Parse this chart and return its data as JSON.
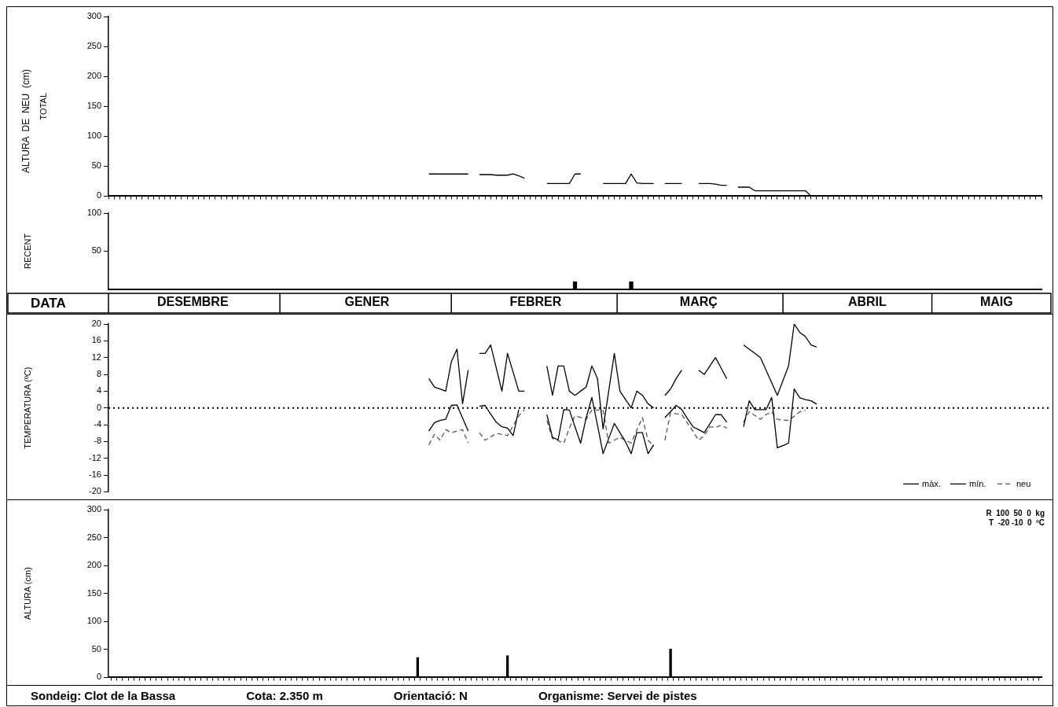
{
  "chart_data": [
    {
      "type": "line",
      "ylabel": "TOTAL",
      "annotations": [
        "ALTURA  DE  NEU  (cm)"
      ],
      "ylim": [
        0,
        300
      ],
      "yticks": [
        0,
        50,
        100,
        150,
        200,
        250,
        300
      ],
      "tick_labels": "y",
      "grid": false,
      "categories": [
        null,
        null,
        null,
        null,
        null,
        null,
        null,
        null,
        null,
        null,
        null,
        null,
        null,
        null,
        null,
        null,
        null,
        null,
        null,
        null,
        null,
        null,
        null,
        null,
        null,
        null,
        null,
        null,
        null,
        null,
        null,
        null,
        null,
        null,
        null,
        null,
        null,
        null,
        null,
        null,
        null,
        null,
        null,
        null,
        null,
        null,
        null,
        null,
        null,
        null,
        null,
        null,
        null,
        null,
        null,
        null,
        null,
        null,
        null,
        null,
        null,
        null,
        null,
        null,
        null,
        null,
        null,
        null,
        null,
        null,
        null,
        null,
        null,
        null,
        null,
        null,
        null,
        null,
        null,
        null,
        null,
        null,
        null,
        null,
        null,
        null,
        null,
        null,
        null,
        null,
        null,
        null,
        null,
        null,
        null,
        null,
        null,
        null,
        null,
        null,
        null,
        null,
        null,
        null,
        null,
        null,
        null,
        null,
        null,
        null,
        null,
        null,
        null,
        null,
        null,
        null,
        null,
        null,
        null,
        null,
        null,
        null,
        null,
        null,
        null,
        null,
        null,
        null,
        null,
        null,
        null,
        null,
        null,
        null,
        null,
        null,
        null,
        null,
        null,
        null,
        null,
        null,
        null,
        null,
        null,
        null,
        null,
        null,
        null,
        null,
        null,
        null,
        null,
        null,
        null,
        null,
        null,
        null,
        null,
        null,
        null,
        null,
        null,
        null,
        null,
        null,
        null
      ],
      "series": [
        {
          "color": "#000000",
          "values": [
            null,
            null,
            null,
            null,
            null,
            null,
            null,
            null,
            null,
            null,
            null,
            null,
            null,
            null,
            null,
            null,
            null,
            null,
            null,
            null,
            null,
            null,
            null,
            null,
            null,
            null,
            null,
            null,
            null,
            null,
            null,
            null,
            null,
            null,
            null,
            null,
            null,
            null,
            null,
            null,
            null,
            null,
            null,
            null,
            null,
            null,
            null,
            null,
            null,
            null,
            null,
            null,
            null,
            null,
            null,
            null,
            null,
            37,
            37,
            37,
            37,
            37,
            37,
            37,
            37,
            null,
            36,
            36,
            36,
            35,
            35,
            35,
            37,
            34,
            30,
            null,
            null,
            null,
            21,
            21,
            21,
            21,
            21,
            37,
            37,
            null,
            null,
            null,
            21,
            21,
            21,
            21,
            21,
            37,
            22,
            21,
            21,
            21,
            null,
            21,
            21,
            21,
            21,
            null,
            null,
            21,
            21,
            21,
            20,
            18,
            18,
            null,
            15,
            15,
            15,
            9,
            9,
            9,
            9,
            9,
            9,
            9,
            9,
            9,
            9,
            0,
            null,
            null,
            null,
            null,
            null,
            null,
            null,
            null,
            null,
            null,
            null,
            null,
            null,
            null,
            null,
            null,
            null,
            null,
            null,
            null,
            null,
            null,
            null,
            null,
            null,
            null,
            null,
            null,
            null,
            null,
            null,
            null,
            null,
            null,
            null,
            null,
            null,
            null,
            null,
            null,
            null
          ]
        }
      ]
    },
    {
      "type": "bar",
      "ylabel": "RECENT",
      "xlabel": "DATA",
      "ylim": [
        0,
        100
      ],
      "yticks": [
        50,
        100
      ],
      "grid": false,
      "categories": [
        null,
        null,
        null,
        null,
        null,
        null,
        null,
        null,
        null,
        null,
        null,
        null,
        null,
        null,
        null,
        "DESEMBRE",
        null,
        null,
        null,
        null,
        null,
        null,
        null,
        null,
        null,
        null,
        null,
        null,
        null,
        null,
        null,
        null,
        null,
        null,
        null,
        null,
        null,
        null,
        null,
        null,
        null,
        null,
        null,
        null,
        null,
        null,
        "GENER",
        null,
        null,
        null,
        null,
        null,
        null,
        null,
        null,
        null,
        null,
        null,
        null,
        null,
        null,
        null,
        null,
        null,
        null,
        null,
        null,
        null,
        null,
        null,
        null,
        null,
        null,
        null,
        null,
        null,
        "FEBRER",
        null,
        null,
        null,
        null,
        null,
        null,
        null,
        null,
        null,
        null,
        null,
        null,
        null,
        null,
        null,
        null,
        null,
        null,
        null,
        null,
        null,
        null,
        null,
        null,
        null,
        null,
        null,
        null,
        "MARÇ",
        null,
        null,
        null,
        null,
        null,
        null,
        null,
        null,
        null,
        null,
        null,
        null,
        null,
        null,
        null,
        null,
        null,
        null,
        null,
        null,
        null,
        null,
        null,
        null,
        null,
        null,
        null,
        null,
        null,
        "ABRIL",
        null,
        null,
        null,
        null,
        null,
        null,
        null,
        null,
        null,
        null,
        null,
        null,
        null,
        null,
        null,
        null,
        null,
        null,
        null,
        null,
        null,
        null,
        "MAIG",
        null,
        null,
        null,
        null,
        null,
        null,
        null,
        null
      ],
      "series": [
        {
          "color": "#000000",
          "values": [
            null,
            null,
            null,
            null,
            null,
            null,
            null,
            null,
            null,
            null,
            null,
            null,
            null,
            null,
            null,
            null,
            null,
            null,
            null,
            null,
            null,
            null,
            null,
            null,
            null,
            null,
            null,
            null,
            null,
            null,
            null,
            null,
            null,
            null,
            null,
            null,
            null,
            null,
            null,
            null,
            null,
            null,
            null,
            null,
            null,
            null,
            null,
            null,
            null,
            null,
            null,
            null,
            null,
            null,
            null,
            null,
            null,
            null,
            null,
            null,
            null,
            null,
            null,
            null,
            null,
            null,
            null,
            null,
            null,
            null,
            null,
            null,
            null,
            null,
            null,
            null,
            null,
            null,
            null,
            null,
            null,
            null,
            null,
            10,
            null,
            null,
            null,
            null,
            null,
            null,
            null,
            null,
            null,
            10,
            null,
            null,
            null,
            null,
            null,
            null,
            null,
            null,
            null,
            null,
            null,
            null,
            null,
            null,
            null,
            null,
            null,
            null,
            null,
            null,
            null,
            null,
            null,
            null,
            null,
            null,
            null,
            null,
            null,
            null,
            null,
            null,
            null,
            null,
            null,
            null,
            null,
            null,
            null,
            null,
            null,
            null,
            null,
            null,
            null,
            null,
            null,
            null,
            null,
            null,
            null,
            null,
            null,
            null,
            null,
            null,
            null,
            null,
            null,
            null,
            null,
            null,
            null,
            null,
            null,
            null,
            null,
            null,
            null,
            null,
            null,
            null,
            null
          ]
        }
      ]
    },
    {
      "type": "line",
      "ylabel": "TEMPERATURA (ºC)",
      "ylim": [
        -20,
        20
      ],
      "yticks": [
        -20,
        -16,
        -12,
        -8,
        -4,
        0,
        4,
        8,
        12,
        16,
        20
      ],
      "tick_labels": "y",
      "grid": false,
      "legend": "bottom right",
      "ref_lines": [
        {
          "axis": "y",
          "value": 0,
          "line_style": "dotted",
          "color": "#000000"
        }
      ],
      "categories": [
        null,
        null,
        null,
        null,
        null,
        null,
        null,
        null,
        null,
        null,
        null,
        null,
        null,
        null,
        null,
        null,
        null,
        null,
        null,
        null,
        null,
        null,
        null,
        null,
        null,
        null,
        null,
        null,
        null,
        null,
        null,
        null,
        null,
        null,
        null,
        null,
        null,
        null,
        null,
        null,
        null,
        null,
        null,
        null,
        null,
        null,
        null,
        null,
        null,
        null,
        null,
        null,
        null,
        null,
        null,
        null,
        null,
        null,
        null,
        null,
        null,
        null,
        null,
        null,
        null,
        null,
        null,
        null,
        null,
        null,
        null,
        null,
        null,
        null,
        null,
        null,
        null,
        null,
        null,
        null,
        null,
        null,
        null,
        null,
        null,
        null,
        null,
        null,
        null,
        null,
        null,
        null,
        null,
        null,
        null,
        null,
        null,
        null,
        null,
        null,
        null,
        null,
        null,
        null,
        null,
        null,
        null,
        null,
        null,
        null,
        null,
        null,
        null,
        null,
        null,
        null,
        null,
        null,
        null,
        null,
        null,
        null,
        null,
        null,
        null,
        null,
        null,
        null,
        null,
        null,
        null,
        null,
        null,
        null,
        null,
        null,
        null,
        null,
        null,
        null,
        null,
        null,
        null,
        null,
        null,
        null,
        null,
        null,
        null,
        null,
        null,
        null,
        null,
        null,
        null,
        null,
        null,
        null,
        null,
        null,
        null,
        null,
        null,
        null,
        null,
        null,
        null
      ],
      "series": [
        {
          "name": "màx.",
          "color": "#000000",
          "line_style": "solid",
          "values": [
            null,
            null,
            null,
            null,
            null,
            null,
            null,
            null,
            null,
            null,
            null,
            null,
            null,
            null,
            null,
            null,
            null,
            null,
            null,
            null,
            null,
            null,
            null,
            null,
            null,
            null,
            null,
            null,
            null,
            null,
            null,
            null,
            null,
            null,
            null,
            null,
            null,
            null,
            null,
            null,
            null,
            null,
            null,
            null,
            null,
            null,
            null,
            null,
            null,
            null,
            null,
            null,
            null,
            null,
            null,
            null,
            null,
            7,
            5,
            4.5,
            4,
            11,
            14,
            1,
            9,
            null,
            13,
            13,
            15,
            9.5,
            4,
            13,
            8.5,
            4,
            4,
            null,
            null,
            null,
            10,
            3,
            10,
            10,
            4,
            3,
            4,
            5,
            10,
            7,
            -5,
            4,
            13,
            4,
            2,
            0,
            4,
            3,
            1,
            0,
            null,
            3,
            4.5,
            7,
            9,
            null,
            null,
            9,
            8,
            10,
            12,
            9.5,
            7,
            null,
            null,
            15,
            14,
            13,
            12,
            9,
            6,
            3,
            6.5,
            10,
            20,
            18,
            17,
            15,
            14.5,
            null,
            null,
            null,
            null,
            null,
            null,
            null,
            null,
            null,
            null,
            null,
            null,
            null,
            null,
            null,
            null,
            null,
            null,
            null,
            null,
            null,
            null,
            null,
            null,
            null,
            null,
            null,
            null,
            null,
            null,
            null,
            null,
            null,
            null,
            null,
            null,
            null,
            null,
            null,
            null
          ]
        },
        {
          "name": "mín.",
          "color": "#000000",
          "line_style": "solid",
          "values": [
            null,
            null,
            null,
            null,
            null,
            null,
            null,
            null,
            null,
            null,
            null,
            null,
            null,
            null,
            null,
            null,
            null,
            null,
            null,
            null,
            null,
            null,
            null,
            null,
            null,
            null,
            null,
            null,
            null,
            null,
            null,
            null,
            null,
            null,
            null,
            null,
            null,
            null,
            null,
            null,
            null,
            null,
            null,
            null,
            null,
            null,
            null,
            null,
            null,
            null,
            null,
            null,
            null,
            null,
            null,
            null,
            null,
            -5.5,
            -3.5,
            -3,
            -2.7,
            0.6,
            0.7,
            -2.4,
            -5.5,
            null,
            0.4,
            0.6,
            -1.5,
            -3.4,
            -4.5,
            -4.8,
            -6.6,
            -0.4,
            null,
            null,
            null,
            null,
            -1.6,
            -7,
            -7.6,
            -0.4,
            -0.5,
            -4.5,
            -8.4,
            -2.3,
            2.5,
            -4.1,
            -10.9,
            -7.3,
            -3.7,
            -5.9,
            -8.1,
            -10.9,
            -5.9,
            -5.9,
            -10.9,
            -8.8,
            null,
            -2.3,
            -0.9,
            0.6,
            -0.4,
            -2.5,
            -4.5,
            -5.2,
            -5.9,
            -3.8,
            -1.6,
            -1.6,
            -3.4,
            null,
            null,
            -4.5,
            1.7,
            -0.4,
            -0.4,
            -0.4,
            2.5,
            -9.5,
            -9,
            -8.4,
            4.5,
            2.4,
            2,
            1.7,
            0.9,
            null,
            null,
            null,
            null,
            null,
            null,
            null,
            null,
            null,
            null,
            null,
            null,
            null,
            null,
            null,
            null,
            null,
            null,
            null,
            null,
            null,
            null,
            null,
            null,
            null,
            null,
            null,
            null,
            null,
            null,
            null,
            null,
            null,
            null,
            null,
            null,
            null,
            null,
            null,
            null
          ]
        },
        {
          "name": "neu",
          "color": "#555555",
          "line_style": "dashed",
          "values": [
            null,
            null,
            null,
            null,
            null,
            null,
            null,
            null,
            null,
            null,
            null,
            null,
            null,
            null,
            null,
            null,
            null,
            null,
            null,
            null,
            null,
            null,
            null,
            null,
            null,
            null,
            null,
            null,
            null,
            null,
            null,
            null,
            null,
            null,
            null,
            null,
            null,
            null,
            null,
            null,
            null,
            null,
            null,
            null,
            null,
            null,
            null,
            null,
            null,
            null,
            null,
            null,
            null,
            null,
            null,
            null,
            null,
            -8.8,
            -6.3,
            -7.7,
            -5.2,
            -5.9,
            -5.5,
            -5.2,
            -8.3,
            null,
            -5.9,
            -7.7,
            -6.9,
            -6.1,
            -6.3,
            -6.6,
            -4.2,
            -1.9,
            -0.4,
            null,
            null,
            null,
            -3,
            -7.3,
            -7.8,
            -8.4,
            -4.8,
            -1.9,
            -2.3,
            -2.7,
            -0.5,
            -0.5,
            -0.5,
            -8.4,
            -7.7,
            -7,
            -7.7,
            -8.4,
            -5.3,
            -2.3,
            -7.7,
            -9.1,
            null,
            -7.7,
            -1.2,
            -1.4,
            -1.6,
            -3.6,
            -5.6,
            -7.7,
            -6.6,
            -4.5,
            -4.7,
            -4.1,
            -4.8,
            null,
            null,
            -3.4,
            -0.9,
            -1.8,
            -2.7,
            -1.6,
            -0.9,
            -2.7,
            -2.9,
            -3,
            -2,
            -0.9,
            -0.6,
            null,
            null,
            null,
            null,
            null,
            null,
            null,
            null,
            null,
            null,
            null,
            null,
            null,
            null,
            null,
            null,
            null,
            null,
            null,
            null,
            null,
            null,
            null,
            null,
            null,
            null,
            null,
            null,
            null,
            null,
            null,
            null,
            null,
            null,
            null,
            null,
            null,
            null,
            null,
            null,
            null,
            null
          ]
        }
      ]
    },
    {
      "type": "bar",
      "ylabel": "ALTURA (cm)",
      "ylim": [
        0,
        300
      ],
      "yticks": [
        0,
        50,
        100,
        150,
        200,
        250,
        300
      ],
      "tick_labels": "y",
      "grid": false,
      "annotations": [
        "R  100  50  0  kg",
        "T  -20 -10  0  ºC",
        "Sondeig: Clot de la Bassa",
        "Cota: 2.350 m",
        "Orientació: N",
        "Organisme: Servei de pistes"
      ],
      "categories": [
        null,
        null,
        null,
        null,
        null,
        null,
        null,
        null,
        null,
        null,
        null,
        null,
        null,
        null,
        null,
        null,
        null,
        null,
        null,
        null,
        null,
        null,
        null,
        null,
        null,
        null,
        null,
        null,
        null,
        null,
        null,
        null,
        null,
        null,
        null,
        null,
        null,
        null,
        null,
        null,
        null,
        null,
        null,
        null,
        null,
        null,
        null,
        null,
        null,
        null,
        null,
        null,
        null,
        null,
        null,
        null,
        null,
        null,
        null,
        null,
        null,
        null,
        null,
        null,
        null,
        null,
        null,
        null,
        null,
        null,
        null,
        null,
        null,
        null,
        null,
        null,
        null,
        null,
        null,
        null,
        null,
        null,
        null,
        null,
        null,
        null,
        null,
        null,
        null,
        null,
        null,
        null,
        null,
        null,
        null,
        null,
        null,
        null,
        null,
        null,
        null,
        null,
        null,
        null,
        null,
        null,
        null,
        null,
        null,
        null,
        null,
        null,
        null,
        null,
        null,
        null,
        null,
        null,
        null,
        null,
        null,
        null,
        null,
        null,
        null,
        null,
        null,
        null,
        null,
        null,
        null,
        null,
        null,
        null,
        null,
        null,
        null,
        null,
        null,
        null,
        null,
        null,
        null,
        null,
        null,
        null,
        null,
        null,
        null,
        null,
        null,
        null,
        null,
        null,
        null,
        null,
        null,
        null,
        null,
        null,
        null,
        null,
        null,
        null,
        null,
        null,
        null
      ],
      "series": [
        {
          "color": "#000000",
          "values": [
            null,
            null,
            null,
            null,
            null,
            null,
            null,
            null,
            null,
            null,
            null,
            null,
            null,
            null,
            null,
            null,
            null,
            null,
            null,
            null,
            null,
            null,
            null,
            null,
            null,
            null,
            null,
            null,
            null,
            null,
            null,
            null,
            null,
            null,
            null,
            null,
            null,
            null,
            null,
            null,
            null,
            null,
            null,
            null,
            null,
            null,
            null,
            null,
            null,
            null,
            null,
            null,
            null,
            null,
            null,
            36,
            null,
            null,
            null,
            null,
            null,
            null,
            null,
            null,
            null,
            null,
            null,
            null,
            null,
            null,
            null,
            39,
            null,
            null,
            null,
            null,
            null,
            null,
            null,
            null,
            null,
            null,
            null,
            null,
            null,
            null,
            null,
            null,
            null,
            null,
            null,
            null,
            null,
            null,
            null,
            null,
            null,
            null,
            null,
            null,
            51,
            null,
            null,
            null,
            null,
            null,
            null,
            null,
            null,
            null,
            null,
            null,
            null,
            null,
            null,
            null,
            null,
            null,
            null,
            null,
            null,
            null,
            null,
            null,
            null,
            null,
            null,
            null,
            null,
            null,
            null,
            null,
            null,
            null,
            null,
            null,
            null,
            null,
            null,
            null,
            null,
            null,
            null,
            null,
            null,
            null,
            null,
            null,
            null,
            null,
            null,
            null,
            null,
            null,
            null,
            null,
            null,
            null,
            null,
            null,
            null,
            null,
            null,
            null,
            null,
            null,
            null
          ]
        }
      ]
    }
  ]
}
